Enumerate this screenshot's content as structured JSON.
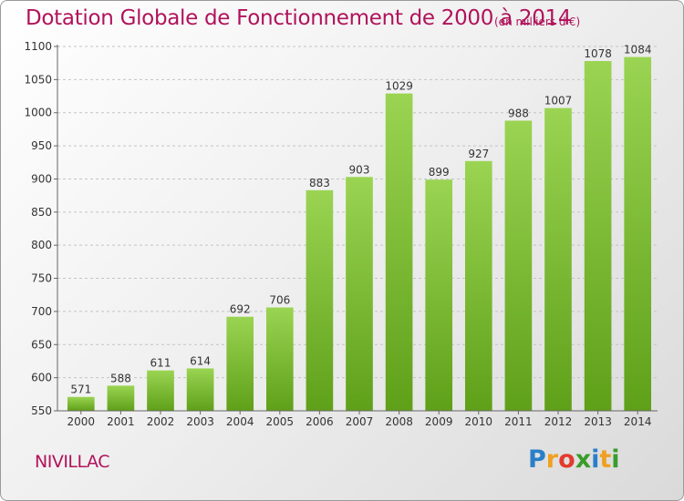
{
  "chart_data": {
    "type": "bar",
    "title": "Dotation Globale de Fonctionnement de 2000 à 2014",
    "subtitle": "(en milliers d'€)",
    "categories": [
      "2000",
      "2001",
      "2002",
      "2003",
      "2004",
      "2005",
      "2006",
      "2007",
      "2008",
      "2009",
      "2010",
      "2011",
      "2012",
      "2013",
      "2014"
    ],
    "values": [
      571,
      588,
      611,
      614,
      692,
      706,
      883,
      903,
      1029,
      899,
      927,
      988,
      1007,
      1078,
      1084
    ],
    "yticks": [
      550,
      600,
      650,
      700,
      750,
      800,
      850,
      900,
      950,
      1000,
      1050,
      1100
    ],
    "ylim": [
      550,
      1100
    ],
    "grid": "horizontal-dashed",
    "legend": "none",
    "bar_color": "#7cc22e"
  },
  "commune": "NIVILLAC",
  "logo": {
    "letters": [
      "P",
      "r",
      "o",
      "x",
      "i",
      "t",
      "i"
    ],
    "colors": [
      "#2a7fc9",
      "#f0a020",
      "#e23c2c",
      "#3a9c2a",
      "#2a7fc9",
      "#f0a020",
      "#3a9c2a"
    ]
  }
}
